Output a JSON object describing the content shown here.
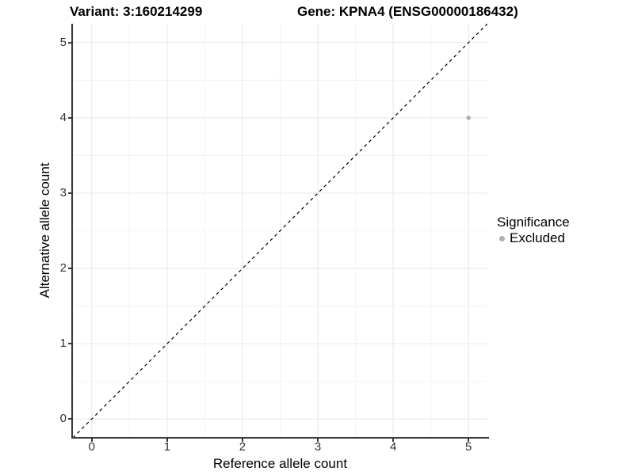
{
  "chart_data": {
    "type": "scatter",
    "title_left": "Variant: 3:160214299",
    "title_right": "Gene: KPNA4 (ENSG00000186432)",
    "xlabel": "Reference allele count",
    "ylabel": "Alternative allele count",
    "xlim": [
      -0.25,
      5.25
    ],
    "ylim": [
      -0.25,
      5.25
    ],
    "x_ticks": [
      0,
      1,
      2,
      3,
      4,
      5
    ],
    "y_ticks": [
      0,
      1,
      2,
      3,
      4,
      5
    ],
    "minor_grid_step": 0.5,
    "grid": "major+minor",
    "points": [
      {
        "x": 5,
        "y": 4,
        "series": "Excluded"
      }
    ],
    "reference_line": {
      "type": "identity (y = x)",
      "slope": 1,
      "intercept": 0,
      "style": "dashed",
      "color": "#000000"
    },
    "legend": {
      "title": "Significance",
      "position": "right",
      "entries": [
        {
          "label": "Excluded",
          "color": "#b0b0b0",
          "shape": "circle"
        }
      ]
    },
    "colors": {
      "point": "#b0b0b0",
      "grid_major": "#e7e7e7",
      "grid_minor": "#f3f3f3",
      "axis_line": "#383838",
      "tick_label": "#303030",
      "title": "#000000",
      "background": "#ffffff"
    }
  }
}
